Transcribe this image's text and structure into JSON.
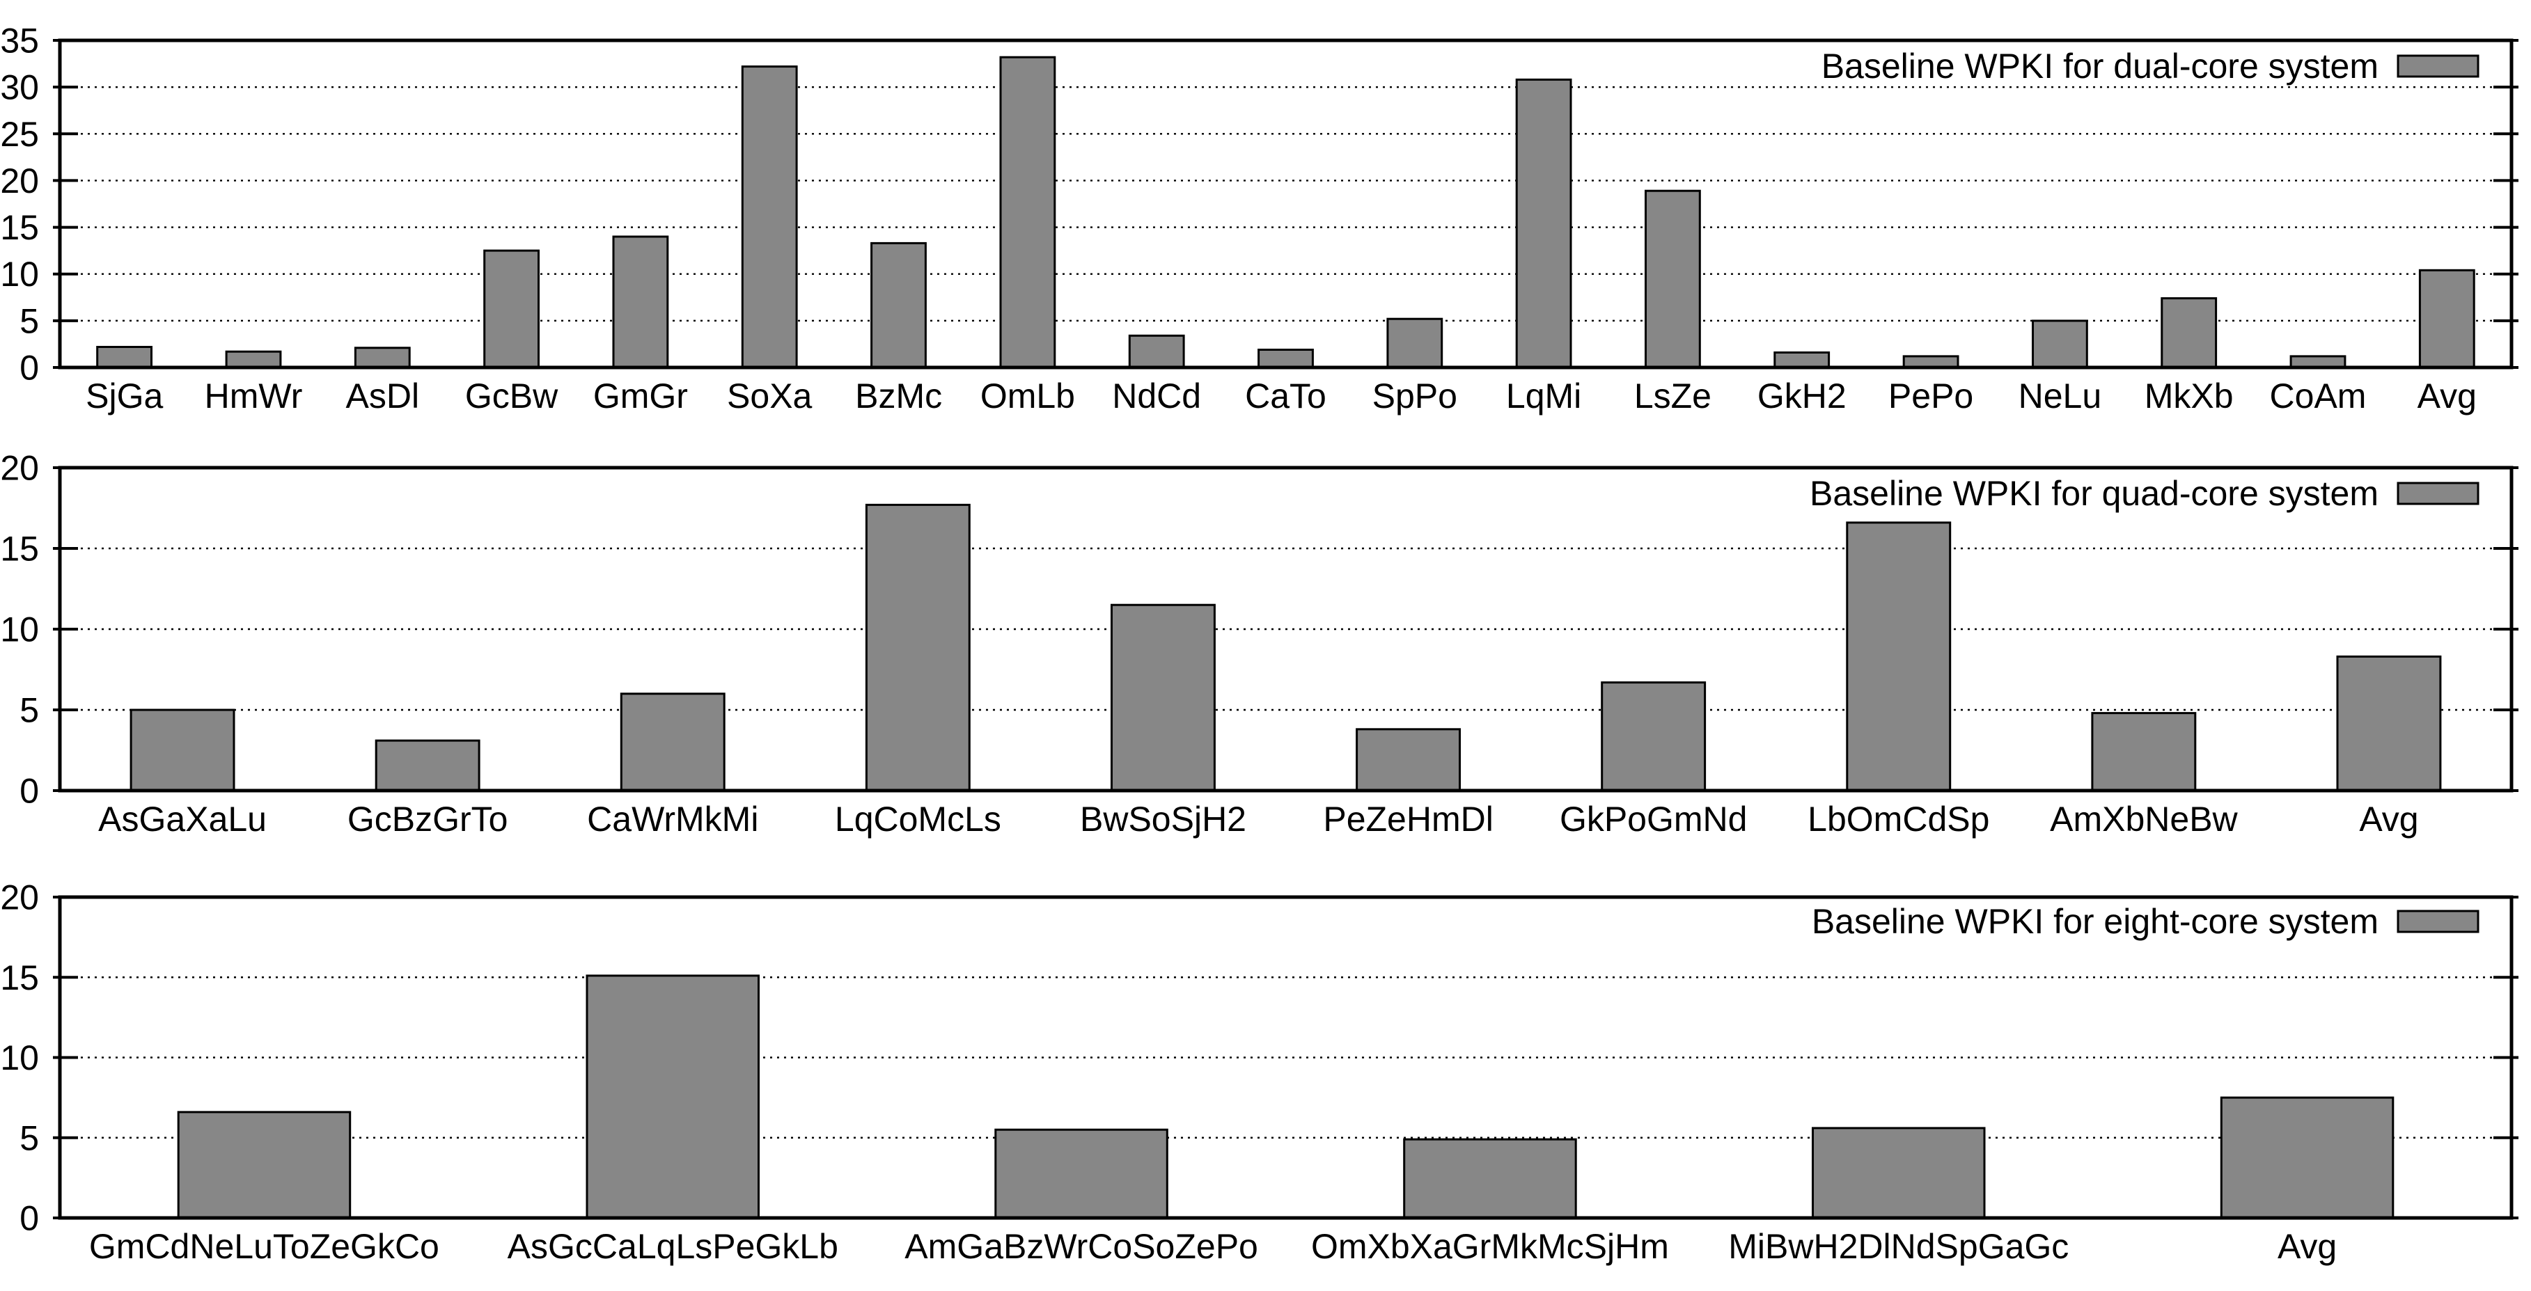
{
  "page": {
    "background": "#ffffff",
    "text_color": "#000000",
    "description": "Three stacked gnuplot-style bar charts of baseline WPKI per workload mix"
  },
  "chart_data": [
    {
      "id": "dual-core",
      "type": "bar",
      "legend_label": "Baseline WPKI for dual-core system",
      "legend_position": "top-right-inside",
      "grid": "horizontal-dotted",
      "bar_fill": "#878787",
      "bar_border": "#000000",
      "ylim": [
        0,
        35
      ],
      "yticks": [
        0,
        5,
        10,
        15,
        20,
        25,
        30,
        35
      ],
      "categories": [
        "SjGa",
        "HmWr",
        "AsDl",
        "GcBw",
        "GmGr",
        "SoXa",
        "BzMc",
        "OmLb",
        "NdCd",
        "CaTo",
        "SpPo",
        "LqMi",
        "LsZe",
        "GkH2",
        "PePo",
        "NeLu",
        "MkXb",
        "CoAm",
        "Avg"
      ],
      "values": [
        2.2,
        1.7,
        2.1,
        12.5,
        14.0,
        32.2,
        13.3,
        33.2,
        3.4,
        1.9,
        5.2,
        30.8,
        18.9,
        1.6,
        1.2,
        5.0,
        7.4,
        1.2,
        10.4
      ]
    },
    {
      "id": "quad-core",
      "type": "bar",
      "legend_label": "Baseline WPKI for quad-core system",
      "legend_position": "top-right-inside",
      "grid": "horizontal-dotted",
      "bar_fill": "#878787",
      "bar_border": "#000000",
      "ylim": [
        0,
        20
      ],
      "yticks": [
        0,
        5,
        10,
        15,
        20
      ],
      "categories": [
        "AsGaXaLu",
        "GcBzGrTo",
        "CaWrMkMi",
        "LqCoMcLs",
        "BwSoSjH2",
        "PeZeHmDl",
        "GkPoGmNd",
        "LbOmCdSp",
        "AmXbNeBw",
        "Avg"
      ],
      "values": [
        5.0,
        3.1,
        6.0,
        17.7,
        11.5,
        3.8,
        6.7,
        16.6,
        4.8,
        8.3
      ]
    },
    {
      "id": "eight-core",
      "type": "bar",
      "legend_label": "Baseline WPKI for eight-core system",
      "legend_position": "top-right-inside",
      "grid": "horizontal-dotted",
      "bar_fill": "#878787",
      "bar_border": "#000000",
      "ylim": [
        0,
        20
      ],
      "yticks": [
        0,
        5,
        10,
        15,
        20
      ],
      "categories": [
        "GmCdNeLuToZeGkCo",
        "AsGcCaLqLsPeGkLb",
        "AmGaBzWrCoSoZePo",
        "OmXbXaGrMkMcSjHm",
        "MiBwH2DlNdSpGaGc",
        "Avg"
      ],
      "values": [
        6.6,
        15.1,
        5.5,
        4.9,
        5.6,
        7.5
      ]
    }
  ]
}
